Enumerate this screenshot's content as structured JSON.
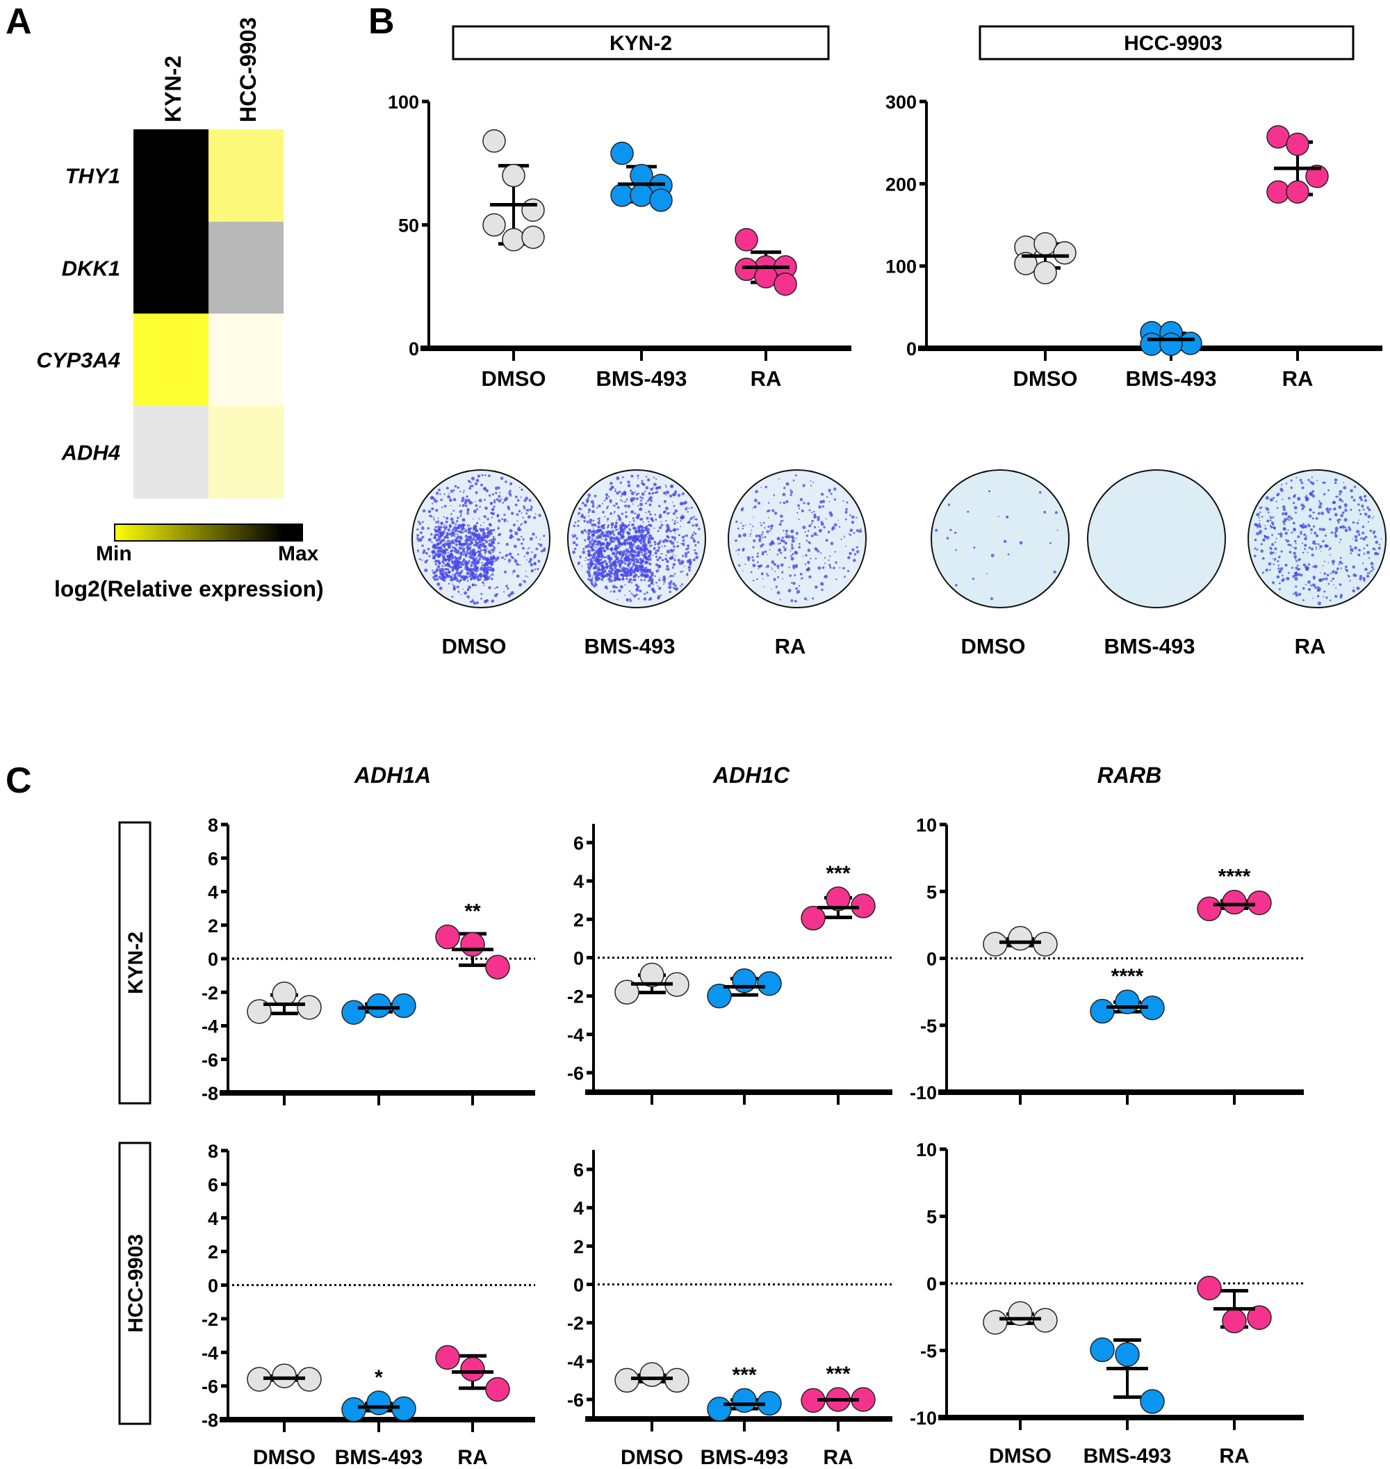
{
  "panel_labels": {
    "a": "A",
    "b": "B",
    "c": "C"
  },
  "colors": {
    "dmso": "#e3e3e3",
    "bms": "#0a96f0",
    "ra": "#f5338f"
  },
  "chart_data": [
    {
      "id": "A",
      "type": "heatmap",
      "columns": [
        "KYN-2",
        "HCC-9903"
      ],
      "rows": [
        "THY1",
        "DKK1",
        "CYP3A4",
        "ADH4"
      ],
      "cell_colors": [
        [
          "#000000",
          "#fcf97a"
        ],
        [
          "#000000",
          "#b8b8b8"
        ],
        [
          "#ffff33",
          "#fffde8"
        ],
        [
          "#e6e6e6",
          "#fdfbbd"
        ]
      ],
      "colorbar": {
        "min_label": "Min",
        "max_label": "Max",
        "title": "log2(Relative expression)",
        "min_color": "#ffff00",
        "max_color": "#000000"
      }
    },
    {
      "id": "B-KYN-2",
      "type": "scatter",
      "title": "KYN-2",
      "categories": [
        "DMSO",
        "BMS-493",
        "RA"
      ],
      "ylim": [
        0,
        100
      ],
      "yticks": [
        0,
        50,
        100
      ],
      "values": [
        [
          84,
          70,
          56,
          50,
          44,
          45
        ],
        [
          79,
          70,
          66,
          62,
          62,
          60
        ],
        [
          44,
          33,
          33,
          32,
          29,
          26
        ]
      ]
    },
    {
      "id": "B-HCC-9903",
      "type": "scatter",
      "title": "HCC-9903",
      "categories": [
        "DMSO",
        "BMS-493",
        "RA"
      ],
      "ylim": [
        0,
        300
      ],
      "yticks": [
        0,
        100,
        200,
        300
      ],
      "values": [
        [
          123,
          127,
          116,
          103,
          92
        ],
        [
          19,
          19,
          6,
          5,
          5
        ],
        [
          257,
          248,
          209,
          190,
          190
        ]
      ]
    },
    {
      "id": "C-KYN-2-ADH1A",
      "type": "scatter",
      "gene": "ADH1A",
      "cell_line": "KYN-2",
      "categories": [
        "DMSO",
        "BMS-493",
        "RA"
      ],
      "ylim": [
        -8,
        8
      ],
      "yticks": [
        -8,
        -6,
        -4,
        -2,
        0,
        2,
        4,
        6,
        8
      ],
      "reference_line": 0,
      "values": [
        [
          -3.15,
          -2.1,
          -2.9
        ],
        [
          -3.2,
          -2.8,
          -2.8
        ],
        [
          1.3,
          0.85,
          -0.5
        ]
      ],
      "significance": [
        "",
        "",
        "**"
      ]
    },
    {
      "id": "C-KYN-2-ADH1C",
      "type": "scatter",
      "gene": "ADH1C",
      "cell_line": "KYN-2",
      "categories": [
        "DMSO",
        "BMS-493",
        "RA"
      ],
      "ylim": [
        -7,
        7
      ],
      "yticks": [
        -6,
        -4,
        -2,
        0,
        2,
        4,
        6
      ],
      "reference_line": 0,
      "values": [
        [
          -1.8,
          -0.9,
          -1.4
        ],
        [
          -2.0,
          -1.2,
          -1.35
        ],
        [
          2.06,
          3.07,
          2.7
        ]
      ],
      "significance": [
        "",
        "",
        "***"
      ]
    },
    {
      "id": "C-KYN-2-RARB",
      "type": "scatter",
      "gene": "RARB",
      "cell_line": "KYN-2",
      "categories": [
        "DMSO",
        "BMS-493",
        "RA"
      ],
      "ylim": [
        -10,
        10
      ],
      "yticks": [
        -10,
        -5,
        0,
        5,
        10
      ],
      "reference_line": 0,
      "values": [
        [
          1.06,
          1.5,
          1.06
        ],
        [
          -3.95,
          -3.25,
          -3.7
        ],
        [
          3.7,
          4.2,
          4.15
        ]
      ],
      "significance": [
        "",
        "****",
        "****"
      ]
    },
    {
      "id": "C-HCC-9903-ADH1A",
      "type": "scatter",
      "gene": "ADH1A",
      "cell_line": "HCC-9903",
      "categories": [
        "DMSO",
        "BMS-493",
        "RA"
      ],
      "ylim": [
        -8,
        8
      ],
      "yticks": [
        -8,
        -6,
        -4,
        -2,
        0,
        2,
        4,
        6,
        8
      ],
      "reference_line": 0,
      "values": [
        [
          -5.6,
          -5.4,
          -5.6
        ],
        [
          -7.4,
          -7.0,
          -7.35
        ],
        [
          -4.3,
          -5.0,
          -6.2
        ]
      ],
      "significance": [
        "",
        "*",
        ""
      ]
    },
    {
      "id": "C-HCC-9903-ADH1C",
      "type": "scatter",
      "gene": "ADH1C",
      "cell_line": "HCC-9903",
      "categories": [
        "DMSO",
        "BMS-493",
        "RA"
      ],
      "ylim": [
        -7,
        7
      ],
      "yticks": [
        -6,
        -4,
        -2,
        0,
        2,
        4,
        6
      ],
      "reference_line": 0,
      "values": [
        [
          -5.0,
          -4.7,
          -5.0
        ],
        [
          -6.5,
          -6.05,
          -6.2
        ],
        [
          -6.05,
          -6.0,
          -6.0
        ]
      ],
      "significance": [
        "",
        "***",
        "***"
      ]
    },
    {
      "id": "C-HCC-9903-RARB",
      "type": "scatter",
      "gene": "RARB",
      "cell_line": "HCC-9903",
      "categories": [
        "DMSO",
        "BMS-493",
        "RA"
      ],
      "ylim": [
        -10,
        10
      ],
      "yticks": [
        -10,
        -5,
        0,
        5,
        10
      ],
      "reference_line": 0,
      "values": [
        [
          -2.9,
          -2.25,
          -2.75
        ],
        [
          -4.95,
          -5.3,
          -8.8
        ],
        [
          -0.35,
          -2.8,
          -2.55
        ]
      ],
      "significance": [
        "",
        "",
        ""
      ]
    }
  ],
  "plates": {
    "kyn2": [
      "DMSO",
      "BMS-493",
      "RA"
    ],
    "hcc9903": [
      "DMSO",
      "BMS-493",
      "RA"
    ]
  },
  "panel_c": {
    "genes": [
      "ADH1A",
      "ADH1C",
      "RARB"
    ],
    "cell_lines": [
      "KYN-2",
      "HCC-9903"
    ]
  }
}
